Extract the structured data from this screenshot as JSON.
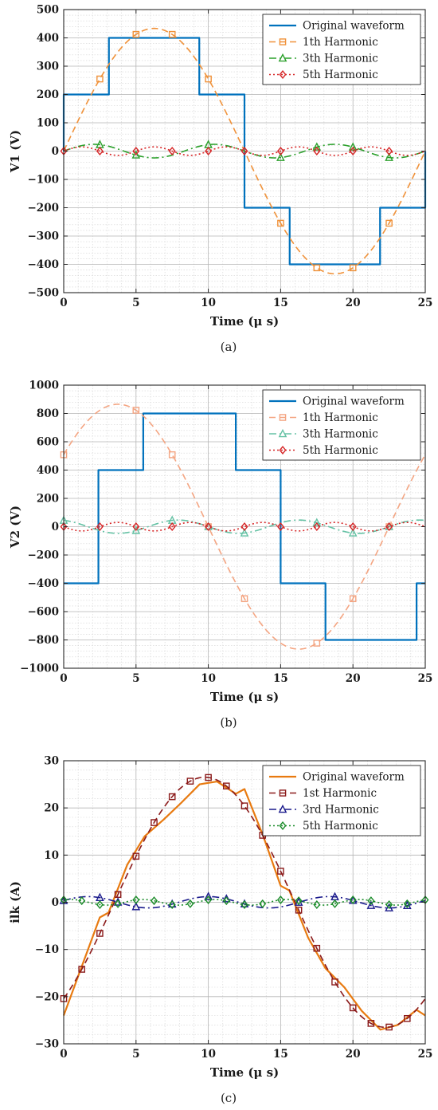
{
  "chart_data": [
    {
      "type": "line",
      "caption": "(a)",
      "xlabel": "Time (μ s)",
      "ylabel": "V1 (V)",
      "xlim": [
        0,
        25
      ],
      "ylim": [
        -500,
        500
      ],
      "xticks": [
        0,
        5,
        10,
        15,
        20,
        25
      ],
      "yticks": [
        -500,
        -400,
        -300,
        -200,
        -100,
        0,
        100,
        200,
        300,
        400,
        500
      ],
      "grid": true,
      "minor_grid": true,
      "legend_position": "top-right",
      "series": [
        {
          "name": "Original waveform",
          "color": "#0072BD",
          "dash": "solid",
          "marker": "none",
          "x": [
            0,
            0,
            3.125,
            3.125,
            9.375,
            9.375,
            12.5,
            12.5,
            15.625,
            15.625,
            21.875,
            21.875,
            25,
            25
          ],
          "y": [
            0,
            200,
            200,
            400,
            400,
            200,
            200,
            -200,
            -200,
            -400,
            -400,
            -200,
            -200,
            0
          ]
        },
        {
          "name": "1th Harmonic",
          "color": "#F0923A",
          "dash": "dashed",
          "marker": "square",
          "func": {
            "amp": 433.5,
            "harmonic": 1,
            "phase": 0,
            "period": 25
          },
          "marker_x": [
            2.5,
            5,
            7.5,
            10,
            15,
            17.5,
            20,
            22.5
          ]
        },
        {
          "name": "3th Harmonic",
          "color": "#2CA02C",
          "dash": "dashdot",
          "marker": "triangle",
          "func": {
            "amp": 24,
            "harmonic": 3,
            "phase": 0,
            "period": 25
          },
          "marker_x": [
            2.5,
            5,
            10,
            15,
            17.5,
            20,
            22.5
          ]
        },
        {
          "name": "5th Harmonic",
          "color": "#D62728",
          "dash": "dotted",
          "marker": "diamond",
          "func": {
            "amp": 15,
            "harmonic": 5,
            "phase": 0,
            "period": 25
          },
          "marker_x": [
            0,
            2.5,
            5,
            7.5,
            10,
            12.5,
            15,
            17.5,
            20,
            22.5
          ]
        }
      ]
    },
    {
      "type": "line",
      "caption": "(b)",
      "xlabel": "Time (μ s)",
      "ylabel": "V2 (V)",
      "xlim": [
        0,
        25
      ],
      "ylim": [
        -1000,
        1000
      ],
      "xticks": [
        0,
        5,
        10,
        15,
        20,
        25
      ],
      "yticks": [
        -1000,
        -800,
        -600,
        -400,
        -200,
        0,
        200,
        400,
        600,
        800,
        1000
      ],
      "grid": true,
      "minor_grid": true,
      "legend_position": "top-right",
      "series": [
        {
          "name": "Original waveform",
          "color": "#0072BD",
          "dash": "solid",
          "marker": "none",
          "x": [
            0,
            2.4,
            2.4,
            5.5,
            5.5,
            11.9,
            11.9,
            15,
            15,
            18.1,
            18.1,
            24.4,
            24.4,
            25
          ],
          "y": [
            -400,
            -400,
            400,
            400,
            800,
            800,
            400,
            400,
            -400,
            -400,
            -800,
            -800,
            -400,
            -400
          ]
        },
        {
          "name": "1th Harmonic",
          "color": "#F4A582",
          "dash": "dashed",
          "marker": "square",
          "func": {
            "amp": 865,
            "harmonic": 1,
            "phase": -2.5,
            "period": 25
          },
          "marker_x": [
            0,
            5,
            7.5,
            10,
            12.5,
            17.5,
            20,
            22.5
          ]
        },
        {
          "name": "3th Harmonic",
          "color": "#66C2A5",
          "dash": "dashdot",
          "marker": "triangle",
          "func": {
            "amp": 47,
            "harmonic": 3,
            "phase": -2.5,
            "period": 25
          },
          "marker_x": [
            0,
            5,
            7.5,
            10,
            12.5,
            17.5,
            20,
            22.5
          ]
        },
        {
          "name": "5th Harmonic",
          "color": "#D62728",
          "dash": "dotted",
          "marker": "diamond",
          "func": {
            "amp": 30,
            "harmonic": 5,
            "phase": -2.5,
            "period": 25
          },
          "marker_x": [
            0,
            2.5,
            5,
            7.5,
            10,
            12.5,
            15,
            17.5,
            20,
            22.5
          ]
        }
      ]
    },
    {
      "type": "line",
      "caption": "(c)",
      "xlabel": "Time (μ s)",
      "ylabel": "ilk (A)",
      "xlim": [
        0,
        25
      ],
      "ylim": [
        -30,
        30
      ],
      "xticks": [
        0,
        5,
        10,
        15,
        20,
        25
      ],
      "yticks": [
        -30,
        -20,
        -10,
        0,
        10,
        20,
        30
      ],
      "grid": true,
      "minor_grid": true,
      "legend_position": "top-right",
      "series": [
        {
          "name": "Original waveform",
          "color": "#E87A10",
          "dash": "solid",
          "marker": "none",
          "x": [
            0,
            1.2,
            2.5,
            3.1,
            4.4,
            5.6,
            6.9,
            8.1,
            9.4,
            10.6,
            11.9,
            12.5,
            13.8,
            15.0,
            15.6,
            16.9,
            18.1,
            19.4,
            20.6,
            21.9,
            23.1,
            24.4,
            25
          ],
          "y": [
            -24,
            -14,
            -3.2,
            -2.2,
            8,
            14,
            17.5,
            21,
            25,
            25.6,
            23,
            24,
            14,
            3.5,
            2.5,
            -7.5,
            -14,
            -18,
            -23,
            -27,
            -26,
            -22.8,
            -24
          ]
        },
        {
          "name": "1st Harmonic",
          "color": "#8B1A1A",
          "dash": "dashed",
          "marker": "square",
          "func": {
            "amp": 26.5,
            "harmonic": 1,
            "phase": 3.5,
            "period": 25
          },
          "marker_x": [
            0,
            1.25,
            2.5,
            3.75,
            5,
            6.25,
            7.5,
            8.75,
            10,
            11.25,
            12.5,
            13.75,
            15,
            16.25,
            17.5,
            18.75,
            20,
            21.25,
            22.5,
            23.75
          ]
        },
        {
          "name": "3rd Harmonic",
          "color": "#1A1A8C",
          "dash": "dashdot",
          "marker": "triangle",
          "func": {
            "amp": 1.2,
            "harmonic": 3,
            "phase": -0.4,
            "period": 25
          },
          "marker_x": [
            0,
            2.5,
            3.75,
            5,
            7.5,
            10,
            11.25,
            12.5,
            16.25,
            18.75,
            20,
            21.25,
            22.5,
            23.75
          ]
        },
        {
          "name": "5th Harmonic",
          "color": "#1B8C2A",
          "dash": "dotted",
          "marker": "diamond",
          "func": {
            "amp": 0.6,
            "harmonic": 5,
            "phase": -0.8,
            "period": 25
          },
          "marker_x": [
            0,
            1.25,
            2.5,
            3.75,
            5,
            6.25,
            7.5,
            8.75,
            10,
            11.25,
            12.5,
            13.75,
            15,
            16.25,
            17.5,
            18.75,
            20,
            21.25,
            22.5,
            23.75,
            25
          ]
        }
      ]
    }
  ]
}
